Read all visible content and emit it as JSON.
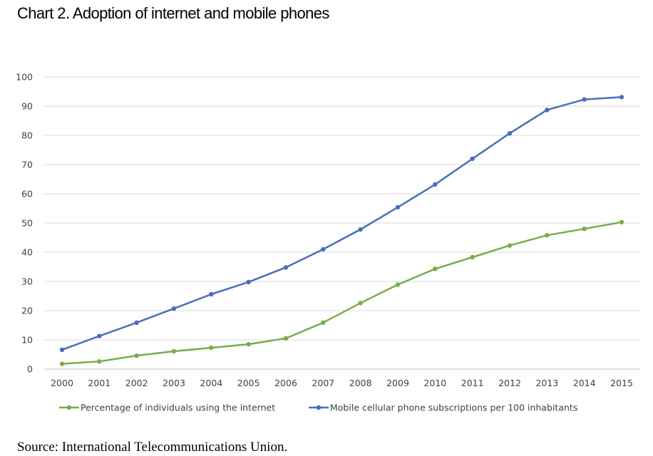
{
  "title": "Chart 2. Adoption of internet and mobile phones",
  "source": "Source: International Telecommunications Union.",
  "chart_data": {
    "type": "line",
    "title": "",
    "xlabel": "",
    "ylabel": "",
    "x": [
      "2000",
      "2001",
      "2002",
      "2003",
      "2004",
      "2005",
      "2006",
      "2007",
      "2008",
      "2009",
      "2010",
      "2011",
      "2012",
      "2013",
      "2014",
      "2015"
    ],
    "ylim": [
      0,
      100
    ],
    "yticks": [
      0,
      10,
      20,
      30,
      40,
      50,
      60,
      70,
      80,
      90,
      100
    ],
    "grid": "horizontal",
    "legend_position": "bottom",
    "series": [
      {
        "name": "Percentage of individuals using the internet",
        "color": "#7aab4a",
        "values": [
          1.8,
          2.6,
          4.6,
          6.1,
          7.3,
          8.5,
          10.5,
          15.9,
          22.6,
          28.9,
          34.3,
          38.3,
          42.3,
          45.8,
          48.0,
          50.3
        ]
      },
      {
        "name": "Mobile cellular phone subscriptions per 100 inhabitants",
        "color": "#4a6fba",
        "values": [
          6.6,
          11.3,
          15.9,
          20.7,
          25.6,
          29.8,
          34.8,
          41.0,
          47.8,
          55.4,
          63.2,
          72.0,
          80.7,
          88.7,
          92.3,
          93.1
        ]
      }
    ]
  }
}
